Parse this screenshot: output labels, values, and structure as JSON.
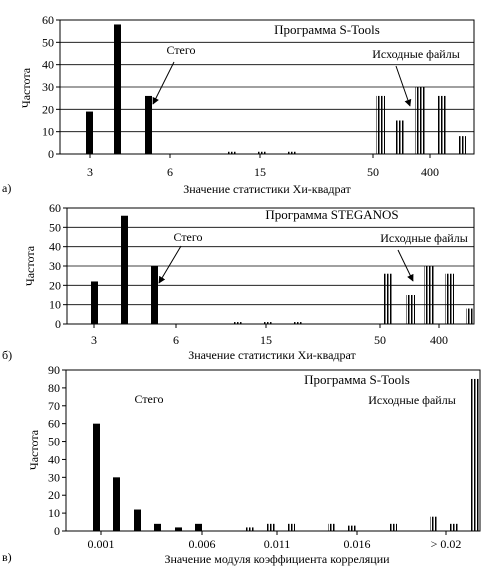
{
  "chart_data": [
    {
      "type": "bar",
      "panel_label": "а)",
      "title": "Программа S-Tools",
      "xlabel": "Значение статистики  Хи-квадрат",
      "ylabel": "Частота",
      "ylim": [
        0,
        60
      ],
      "yticks": [
        0,
        10,
        20,
        30,
        40,
        50,
        60
      ],
      "grid": "horizontal",
      "x_tick_labels": [
        "3",
        "6",
        "15",
        "50",
        "400"
      ],
      "annotations": [
        "Стего",
        "Исходные файлы"
      ],
      "series": [
        {
          "style": "solid",
          "values": [
            19,
            58,
            26
          ]
        },
        {
          "style": "striped",
          "values": [
            1,
            1,
            1,
            26,
            15,
            30,
            26,
            8
          ]
        }
      ]
    },
    {
      "type": "bar",
      "panel_label": "б)",
      "title": "Программа STEGANOS",
      "xlabel": "Значение статистики  Хи-квадрат",
      "ylabel": "Частота",
      "ylim": [
        0,
        60
      ],
      "yticks": [
        0,
        10,
        20,
        30,
        40,
        50,
        60
      ],
      "grid": "horizontal",
      "x_tick_labels": [
        "3",
        "6",
        "15",
        "50",
        "400"
      ],
      "annotations": [
        "Стего",
        "Исходные файлы"
      ],
      "series": [
        {
          "style": "solid",
          "values": [
            22,
            56,
            30
          ]
        },
        {
          "style": "striped",
          "values": [
            1,
            1,
            1,
            26,
            15,
            30,
            26,
            8
          ]
        }
      ]
    },
    {
      "type": "bar",
      "panel_label": "в)",
      "title": "Программа S-Tools",
      "xlabel": "Значение модуля коэффициента корреляции",
      "ylabel": "Частота",
      "ylim": [
        0,
        90
      ],
      "yticks": [
        0,
        10,
        20,
        30,
        40,
        50,
        60,
        70,
        80,
        90
      ],
      "grid": "none",
      "x_tick_labels": [
        "0.001",
        "0.006",
        "0.011",
        "0.016",
        "> 0.02"
      ],
      "annotations": [
        "Стего",
        "Исходные файлы"
      ],
      "series": [
        {
          "style": "solid",
          "values": [
            60,
            30,
            12,
            4,
            2,
            4
          ]
        },
        {
          "style": "striped",
          "values": [
            2,
            4,
            4,
            4,
            3,
            4,
            8,
            4,
            85
          ]
        }
      ]
    }
  ]
}
